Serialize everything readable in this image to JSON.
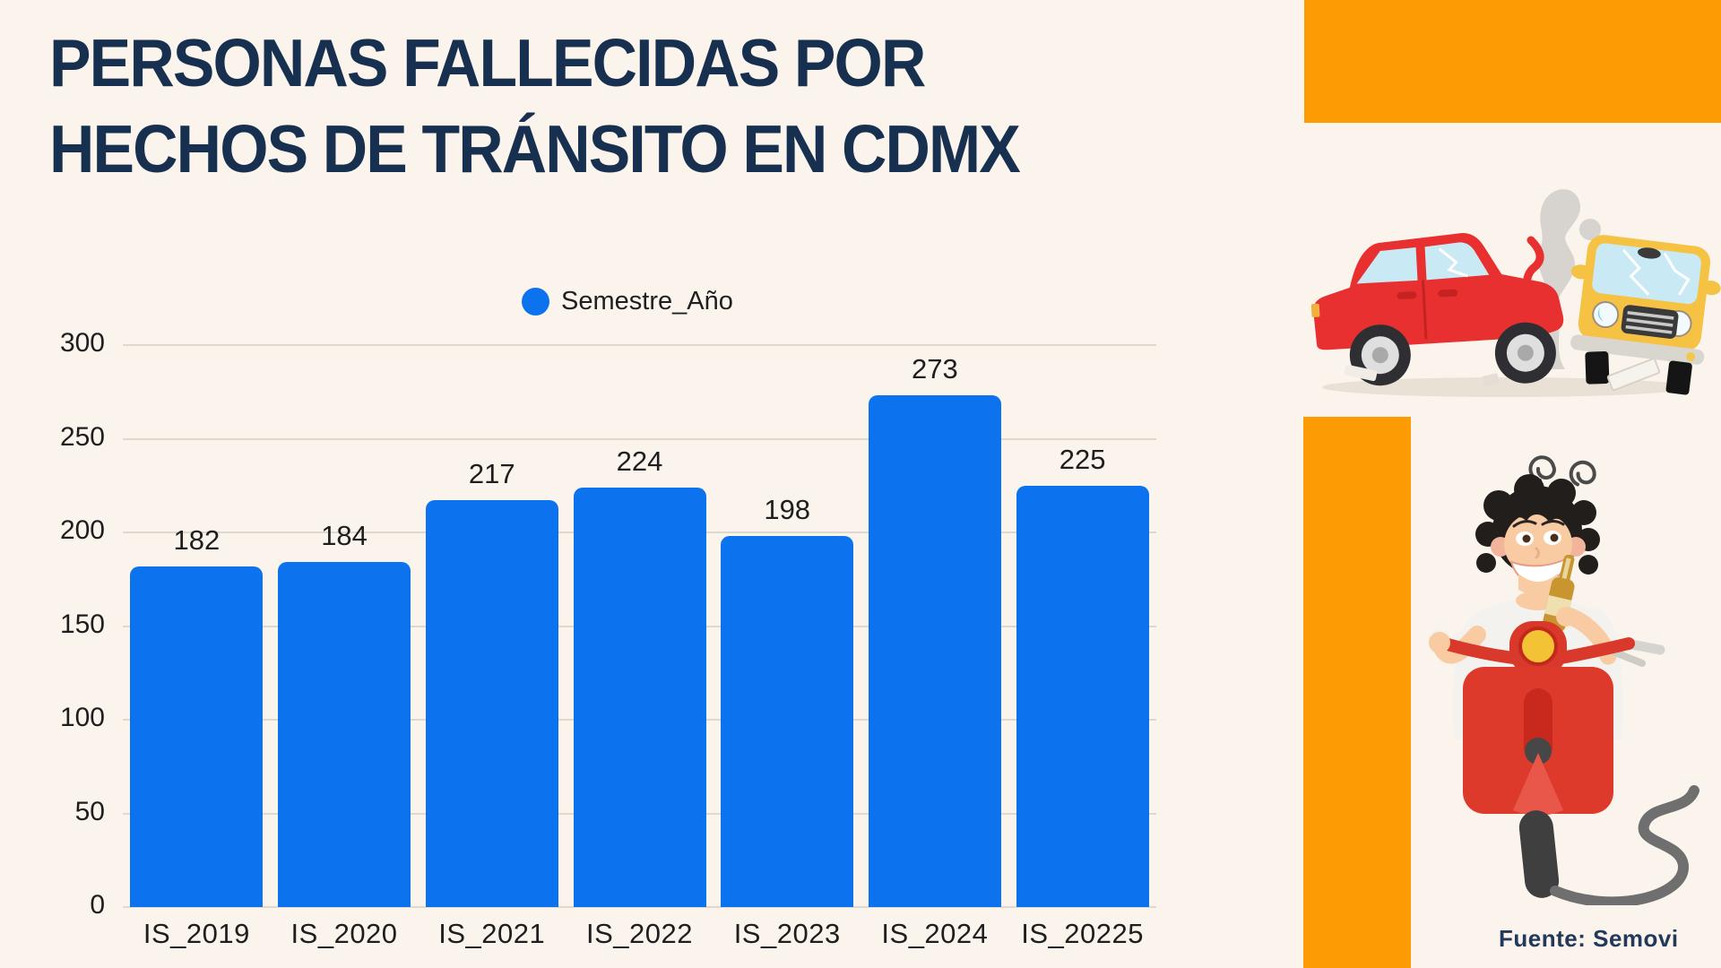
{
  "title": {
    "line1": "PERSONAS FALLECIDAS POR",
    "line2": "HECHOS DE TRÁNSITO EN CDMX"
  },
  "legend": {
    "label": "Semestre_Año"
  },
  "source": {
    "label": "Fuente: Semovi"
  },
  "colors": {
    "background": "#FBF4EC",
    "bar_blue": "#0D72ED",
    "title_navy": "#17304F",
    "accent_orange": "#FC9B03",
    "gridline": "#DFD8CE",
    "axis_text": "#1E1E1E",
    "source_text": "#23395B"
  },
  "chart_data": {
    "type": "bar",
    "title": "",
    "series_name": "Semestre_Año",
    "categories": [
      "IS_2019",
      "IS_2020",
      "IS_2021",
      "IS_2022",
      "IS_2023",
      "IS_2024",
      "IS_20225"
    ],
    "values": [
      182,
      184,
      217,
      224,
      198,
      273,
      225
    ],
    "xlabel": "",
    "ylabel": "",
    "ylim": [
      0,
      300
    ],
    "yticks": [
      0,
      50,
      100,
      150,
      200,
      250,
      300
    ],
    "grid": "horizontal",
    "legend_position": "top",
    "bar_color": "#0D72ED"
  },
  "illustrations": {
    "car_crash": "car-crash-illustration",
    "scooter": "drunk-rider-scooter-illustration"
  }
}
